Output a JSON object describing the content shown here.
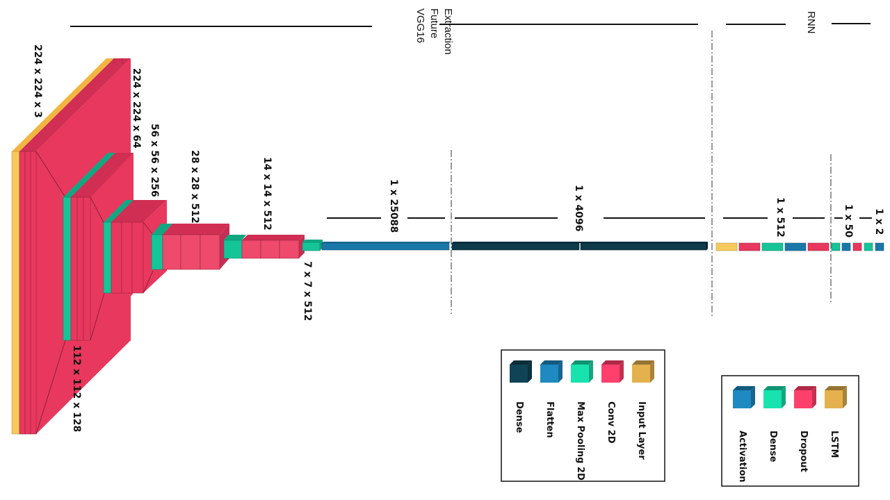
{
  "sections": {
    "feature_extraction": "VGG16\nFuture\nExtraction",
    "rnn": "RNN"
  },
  "dims": {
    "input": "224 x 224 x 3",
    "conv1": "224 x 224 x 64",
    "pool1": "112 x 112 x 128",
    "conv3": "56 x 56 x 256",
    "conv4": "28 x 28 x 512",
    "conv5": "14 x 14 x 512",
    "pool5": "7 x 7 x 512",
    "flatten": "1 x 25088",
    "dense": "1 x 4096",
    "lstm": "1 x 512",
    "rnn_dense": "1 x 50",
    "output": "1 x 2"
  },
  "legend_vgg": [
    {
      "label": "Dense",
      "color": "#0e3a4a"
    },
    {
      "label": "Flatten",
      "color": "#1a78a8"
    },
    {
      "label": "Max Pooling 2D",
      "color": "#15c598"
    },
    {
      "label": "Conv 2D",
      "color": "#e8385e"
    },
    {
      "label": "Input Layer",
      "color": "#c79a44"
    }
  ],
  "legend_rnn": [
    {
      "label": "Activation",
      "color": "#1a78a8"
    },
    {
      "label": "Dense",
      "color": "#15c598"
    },
    {
      "label": "Dropout",
      "color": "#e8385e"
    },
    {
      "label": "LSTM",
      "color": "#c79a44"
    }
  ],
  "colors": {
    "conv": "#e8385e",
    "conv_dark": "#b82a4c",
    "pool": "#15c598",
    "input": "#f7c95c",
    "flatten": "#1a78a8",
    "dense": "#0e3a4a",
    "lstm": "#f7c95c"
  }
}
